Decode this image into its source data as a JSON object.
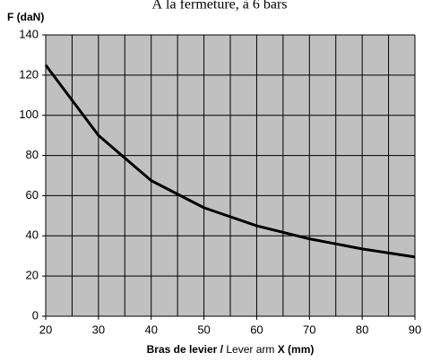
{
  "chart_data": {
    "type": "line",
    "title": "À la fermeture, à 6 bars",
    "y_label": "F (daN)",
    "x_label": [
      "Bras de levier /",
      "Lever arm",
      "X (mm)"
    ],
    "x": [
      20,
      30,
      40,
      50,
      60,
      70,
      80,
      90
    ],
    "series": [
      {
        "name": "F",
        "color": "#000000",
        "values": [
          125,
          90,
          67.5,
          54,
          45,
          38.5,
          33.5,
          29.5
        ]
      }
    ],
    "xlim": [
      20,
      90
    ],
    "xticks": [
      20,
      30,
      40,
      50,
      60,
      70,
      80,
      90
    ],
    "x_minor_ticks": [
      25,
      35,
      45,
      55,
      65,
      75,
      85
    ],
    "ylim": [
      0,
      140
    ],
    "yticks": [
      0,
      20,
      40,
      60,
      80,
      100,
      120,
      140
    ],
    "grid": true
  }
}
